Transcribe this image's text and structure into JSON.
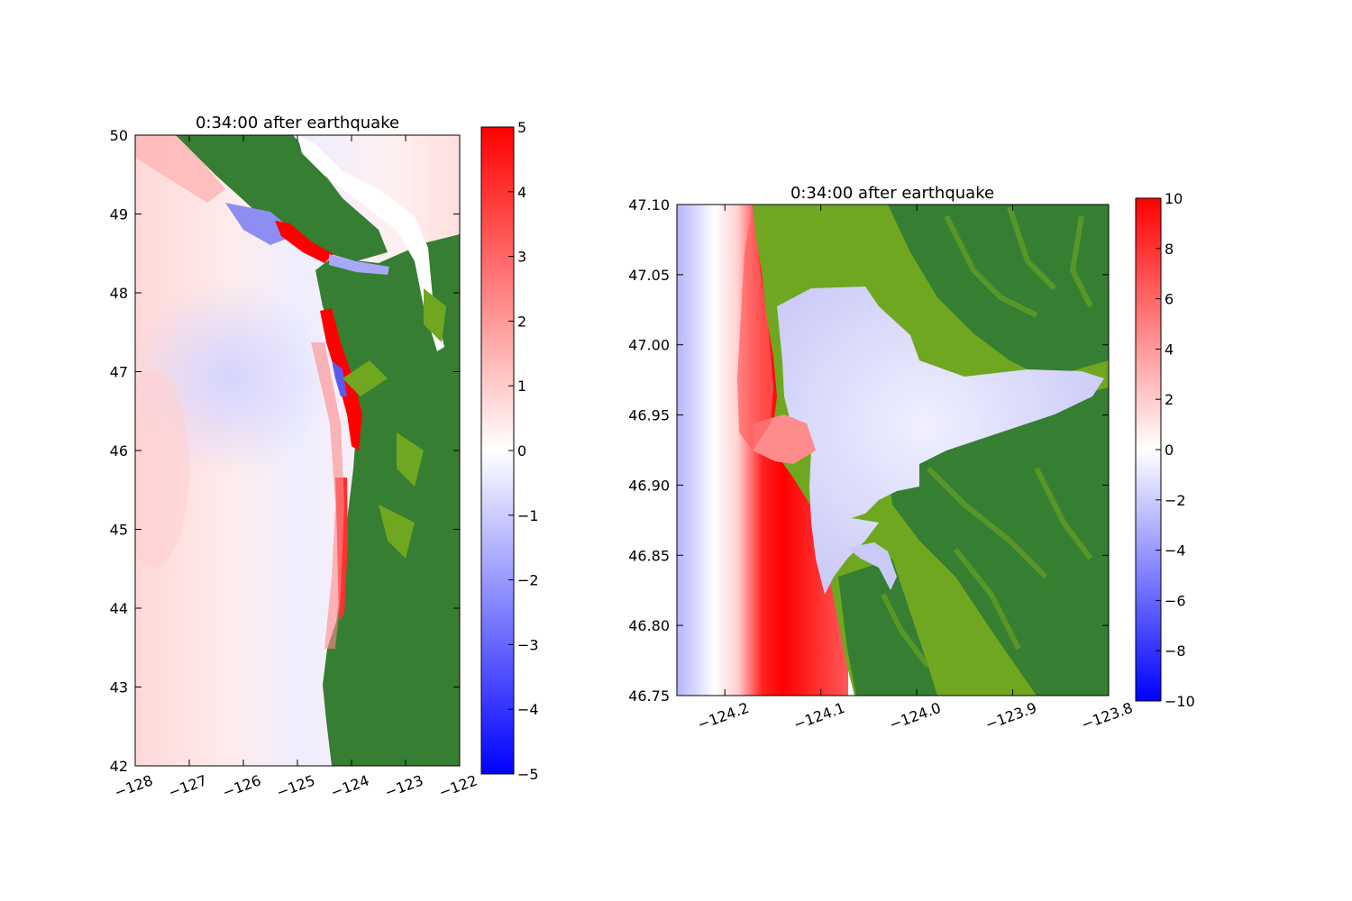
{
  "figure": {
    "panels": [
      {
        "title": "0:34:00 after earthquake",
        "xlim": [
          -128,
          -122
        ],
        "ylim": [
          42,
          50
        ],
        "xticks": [
          -128,
          -127,
          -126,
          -125,
          -124,
          -123,
          -122
        ],
        "xtick_labels": [
          "−128",
          "−127",
          "−126",
          "−125",
          "−124",
          "−123",
          "−122"
        ],
        "yticks": [
          42,
          43,
          44,
          45,
          46,
          47,
          48,
          49,
          50
        ],
        "ytick_labels": [
          "42",
          "43",
          "44",
          "45",
          "46",
          "47",
          "48",
          "49",
          "50"
        ],
        "colorbar": {
          "range": [
            -5,
            5
          ],
          "ticks": [
            -5,
            -4,
            -3,
            -2,
            -1,
            0,
            1,
            2,
            3,
            4,
            5
          ],
          "tick_labels": [
            "−5",
            "−4",
            "−3",
            "−2",
            "−1",
            "0",
            "1",
            "2",
            "3",
            "4",
            "5"
          ]
        }
      },
      {
        "title": "0:34:00 after earthquake",
        "xlim": [
          -124.25,
          -123.8
        ],
        "ylim": [
          46.75,
          47.1
        ],
        "xticks": [
          -124.2,
          -124.1,
          -124.0,
          -123.9,
          -123.8
        ],
        "xtick_labels": [
          "−124.2",
          "−124.1",
          "−124.0",
          "−123.9",
          "−123.8"
        ],
        "yticks": [
          46.75,
          46.8,
          46.85,
          46.9,
          46.95,
          47.0,
          47.05,
          47.1
        ],
        "ytick_labels": [
          "46.75",
          "46.80",
          "46.85",
          "46.90",
          "46.95",
          "47.00",
          "47.05",
          "47.10"
        ],
        "colorbar": {
          "range": [
            -10,
            10
          ],
          "ticks": [
            -10,
            -8,
            -6,
            -4,
            -2,
            0,
            2,
            4,
            6,
            8,
            10
          ],
          "tick_labels": [
            "−10",
            "−8",
            "−6",
            "−4",
            "−2",
            "0",
            "2",
            "4",
            "6",
            "8",
            "10"
          ]
        }
      }
    ]
  },
  "chart_data": [
    {
      "type": "heatmap",
      "title": "0:34:00 after earthquake",
      "xlim": [
        -128,
        -122
      ],
      "ylim": [
        42,
        50
      ],
      "colormap": "bwr",
      "land_colors": [
        "#357e32",
        "#6fa820"
      ],
      "color_range": [
        -5,
        5
      ],
      "coastline": [
        [
          -124.5,
          48.4
        ],
        [
          -124.3,
          48.0
        ],
        [
          -124.1,
          47.5
        ],
        [
          -124.0,
          47.0
        ],
        [
          -123.95,
          46.5
        ],
        [
          -123.95,
          46.0
        ],
        [
          -124.0,
          45.5
        ],
        [
          -124.0,
          45.0
        ],
        [
          -124.05,
          44.5
        ],
        [
          -124.1,
          44.0
        ],
        [
          -124.25,
          43.5
        ],
        [
          -124.4,
          43.0
        ],
        [
          -124.35,
          42.5
        ],
        [
          -124.3,
          42.0
        ]
      ],
      "positive_band_lat": [
        44.0,
        47.8
      ],
      "positive_band_max": 5,
      "strait_positive_max": 5
    },
    {
      "type": "heatmap",
      "title": "0:34:00 after earthquake",
      "xlim": [
        -124.25,
        -123.8
      ],
      "ylim": [
        46.75,
        47.1
      ],
      "colormap": "bwr",
      "land_colors": [
        "#357e32",
        "#6fa820"
      ],
      "color_range": [
        -10,
        10
      ],
      "ocean_gradient": [
        [
          -124.25,
          -3
        ],
        [
          -124.21,
          -1
        ],
        [
          -124.19,
          0
        ],
        [
          -124.17,
          6
        ],
        [
          -124.15,
          9
        ],
        [
          -124.12,
          10
        ],
        [
          -124.09,
          6
        ]
      ],
      "bay_value": -2
    }
  ]
}
